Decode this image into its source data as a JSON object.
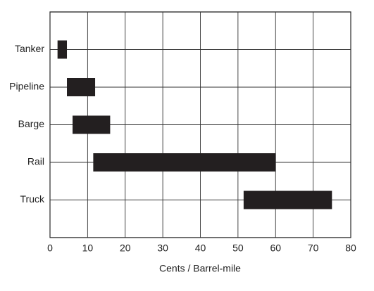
{
  "chart_data": {
    "type": "bar",
    "orientation": "horizontal",
    "categories": [
      "Tanker",
      "Pipeline",
      "Barge",
      "Rail",
      "Truck"
    ],
    "starts": [
      2,
      4.5,
      6,
      11.5,
      51.5
    ],
    "ends": [
      4.5,
      12,
      16,
      60,
      75
    ],
    "color": "#231f20",
    "xlabel": "Cents / Barrel-mile",
    "xlim": [
      0,
      80
    ],
    "xticks": [
      0,
      10,
      20,
      30,
      40,
      50,
      60,
      70,
      80
    ],
    "grid": true
  }
}
